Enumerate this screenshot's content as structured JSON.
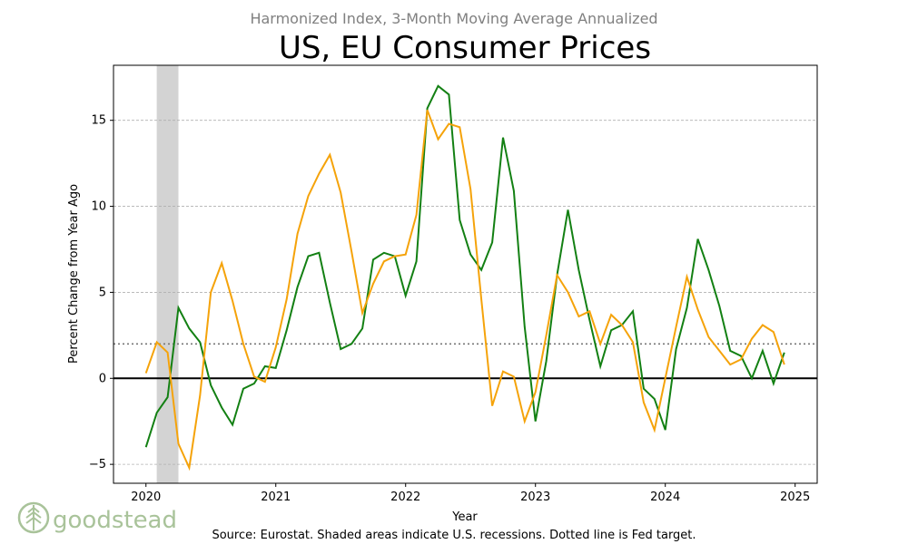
{
  "chart_data": {
    "type": "line",
    "subtitle": "Harmonized Index, 3-Month Moving Average Annualized",
    "title": "US, EU Consumer Prices",
    "xlabel": "Year",
    "ylabel": "Percent Change from Year Ago",
    "source": "Source: Eurostat. Shaded areas indicate U.S. recessions. Dotted line is Fed target.",
    "xlim": [
      2019.75,
      2025.17
    ],
    "ylim": [
      -6.1,
      18.2
    ],
    "x_ticks": [
      "2020",
      "2021",
      "2022",
      "2023",
      "2024",
      "2025"
    ],
    "y_ticks": [
      {
        "v": -5,
        "label": "−5"
      },
      {
        "v": 0,
        "label": "0"
      },
      {
        "v": 5,
        "label": "5"
      },
      {
        "v": 10,
        "label": "10"
      },
      {
        "v": 15,
        "label": "15"
      }
    ],
    "grid": "horizontal dashed",
    "fed_target": 2,
    "recession": [
      2020.083,
      2020.25
    ],
    "start_year": 2020,
    "series": [
      {
        "color": "#138013",
        "values": [
          -4.0,
          -2.0,
          -1.1,
          4.1,
          2.9,
          2.1,
          -0.4,
          -1.7,
          -2.7,
          -0.6,
          -0.3,
          0.7,
          0.6,
          2.8,
          5.3,
          7.1,
          7.3,
          4.4,
          1.7,
          2.0,
          2.9,
          6.9,
          7.3,
          7.1,
          4.8,
          6.8,
          15.7,
          17.0,
          16.5,
          9.2,
          7.2,
          6.3,
          7.9,
          14.0,
          10.9,
          3.0,
          -2.5,
          1.0,
          6.0,
          9.8,
          6.3,
          3.4,
          0.7,
          2.8,
          3.1,
          3.9,
          -0.6,
          -1.2,
          -3.0,
          1.7,
          4.1,
          8.1,
          6.3,
          4.2,
          1.6,
          1.3,
          0.0,
          1.6,
          -0.3,
          1.5
        ]
      },
      {
        "color": "#f5a30a",
        "values": [
          0.3,
          2.1,
          1.5,
          -3.8,
          -5.2,
          -1.0,
          5.0,
          6.7,
          4.5,
          2.0,
          0.1,
          -0.2,
          1.8,
          4.6,
          8.4,
          10.6,
          11.9,
          13.0,
          10.8,
          7.4,
          3.8,
          5.5,
          6.8,
          7.1,
          7.2,
          9.5,
          15.6,
          13.9,
          14.8,
          14.6,
          11.0,
          4.6,
          -1.6,
          0.4,
          0.1,
          -2.5,
          -0.8,
          2.5,
          6.0,
          5.0,
          3.6,
          3.9,
          2.0,
          3.7,
          3.1,
          2.1,
          -1.4,
          -3.0,
          0.0,
          3.0,
          5.9,
          4.0,
          2.4,
          1.6,
          0.8,
          1.1,
          2.3,
          3.1,
          2.7,
          0.8
        ]
      }
    ]
  },
  "logo": {
    "text": "goodstead",
    "color": "#a9c39a"
  }
}
